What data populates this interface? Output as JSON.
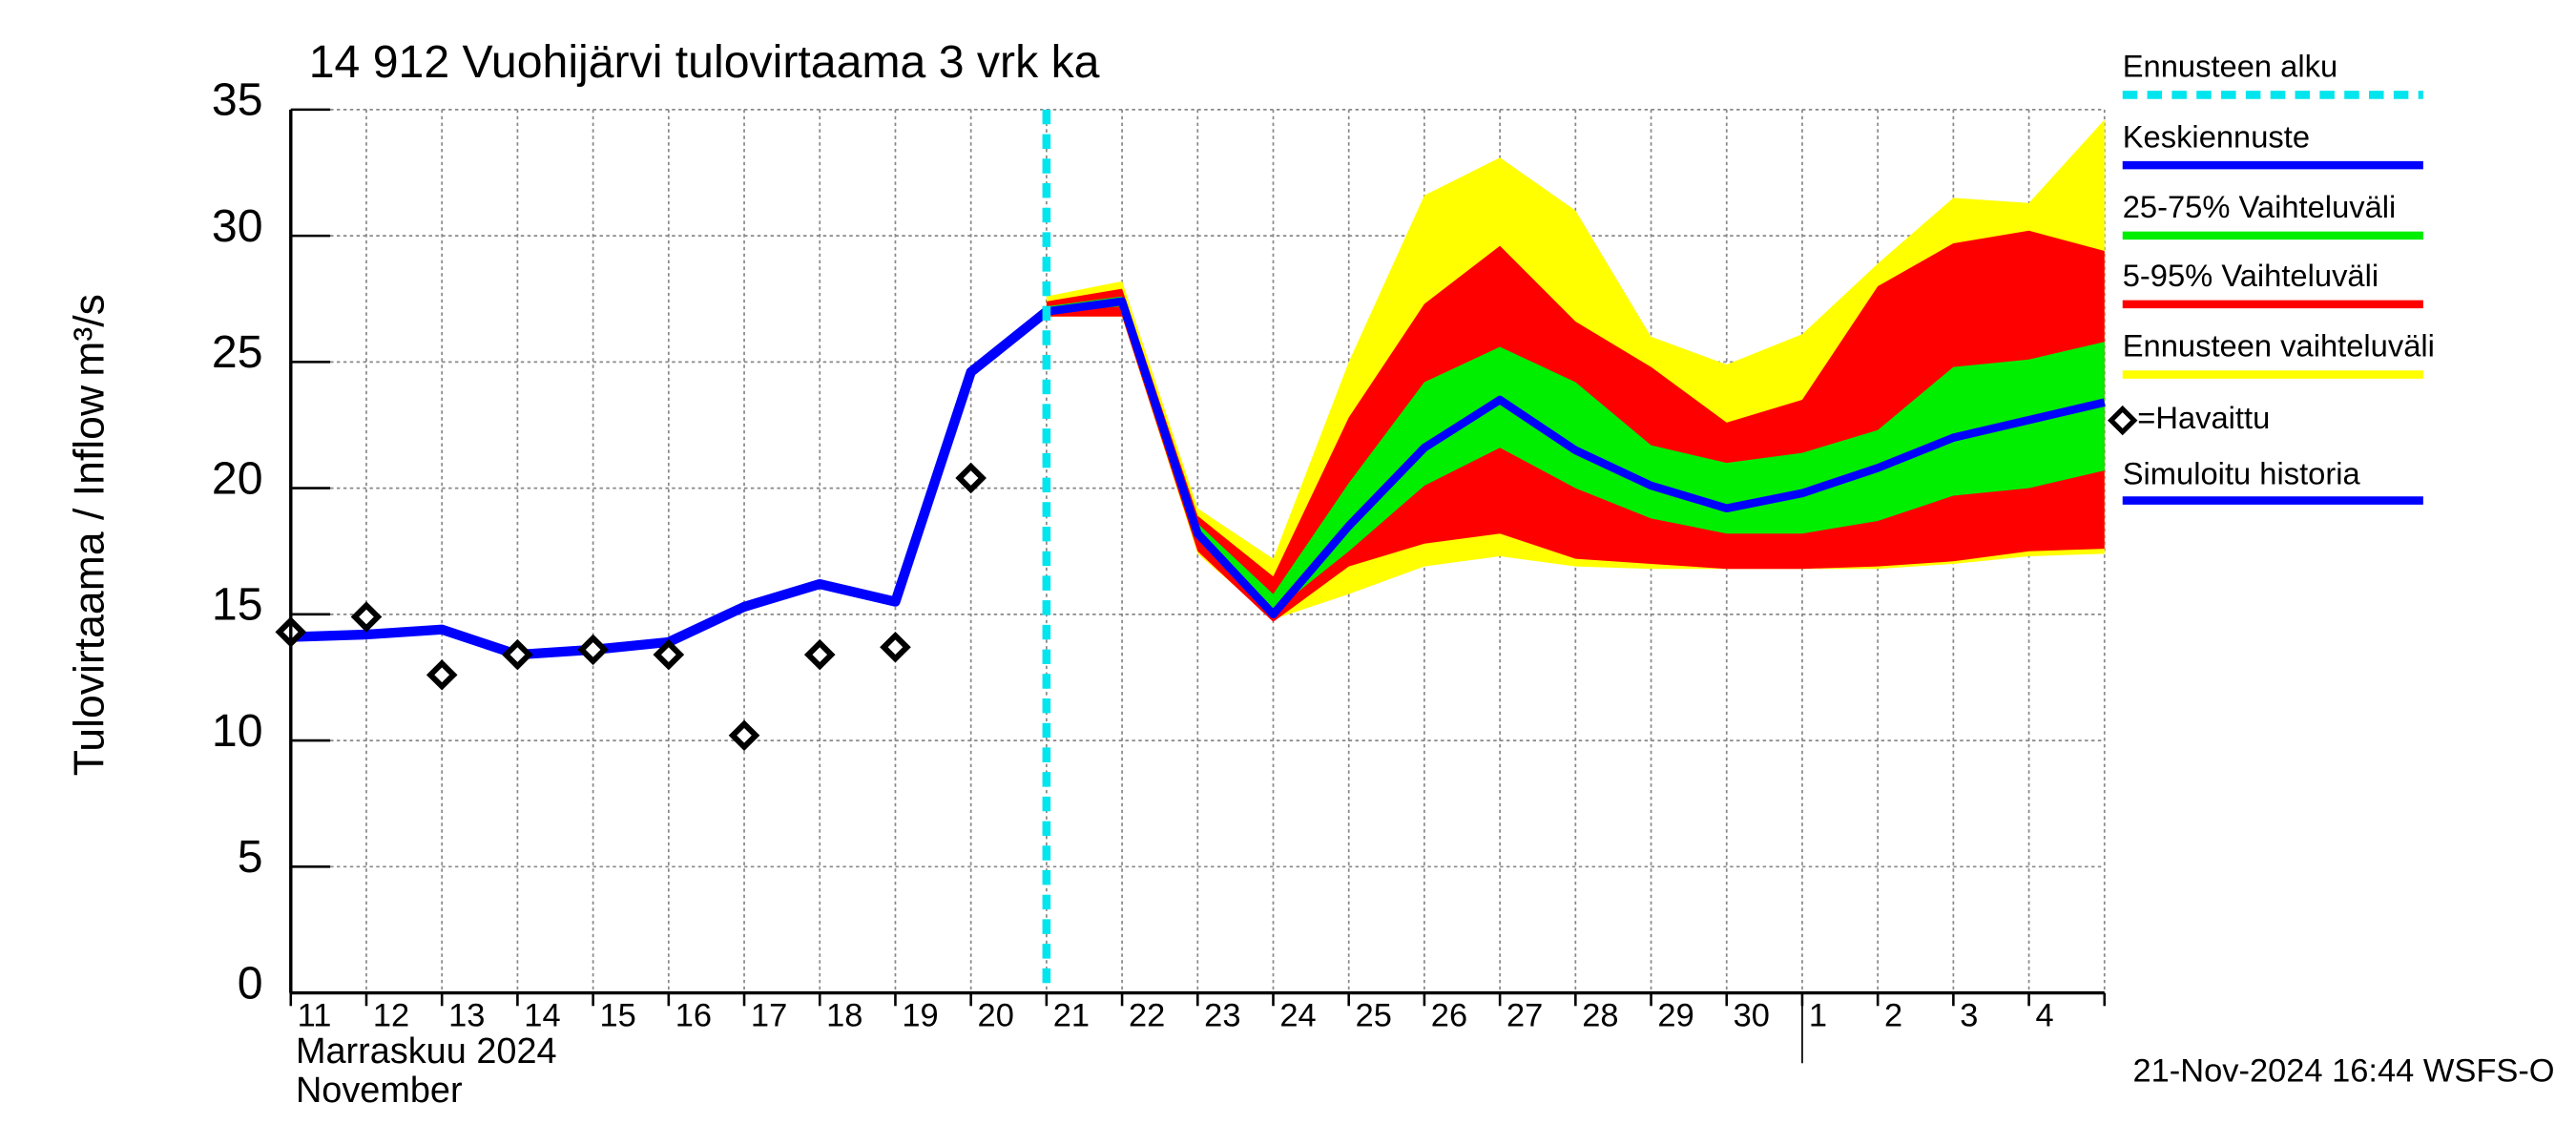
{
  "chart_data": {
    "type": "line",
    "title": "14 912 Vuohijärvi tulovirtaama 3 vrk ka",
    "ylabel": "Tulovirtaama / Inflow",
    "ylabel_unit": "m³/s",
    "xlabel": [
      "Marraskuu 2024",
      "November"
    ],
    "footer": "21-Nov-2024 16:44 WSFS-O",
    "categories": [
      "11",
      "12",
      "13",
      "14",
      "15",
      "16",
      "17",
      "18",
      "19",
      "20",
      "21",
      "22",
      "23",
      "24",
      "25",
      "26",
      "27",
      "28",
      "29",
      "30",
      "1",
      "2",
      "3",
      "4",
      null
    ],
    "ylim": [
      0,
      35
    ],
    "yticks": [
      0,
      5,
      10,
      15,
      20,
      25,
      30,
      35
    ],
    "grid": true,
    "forecast_start": {
      "name": "Ennusteen alku",
      "color": "#00e5ee",
      "category": "21"
    },
    "bands": [
      {
        "name": "Ennusteen vaihteluväli",
        "color": "#ffff00",
        "upper": [
          null,
          null,
          null,
          null,
          null,
          null,
          null,
          null,
          null,
          null,
          27.6,
          28.2,
          19.2,
          17.2,
          25.0,
          31.6,
          33.1,
          31.0,
          26.0,
          24.9,
          26.1,
          28.9,
          31.5,
          31.3,
          34.6
        ],
        "lower": [
          null,
          null,
          null,
          null,
          null,
          null,
          null,
          null,
          null,
          null,
          26.8,
          26.8,
          17.4,
          14.8,
          15.8,
          16.9,
          17.3,
          16.9,
          16.8,
          16.8,
          16.8,
          16.8,
          17.0,
          17.3,
          17.4
        ]
      },
      {
        "name": "5-95% Vaihteluväli",
        "color": "#ff0000",
        "upper": [
          null,
          null,
          null,
          null,
          null,
          null,
          null,
          null,
          null,
          null,
          27.4,
          27.9,
          18.9,
          16.5,
          22.8,
          27.3,
          29.6,
          26.6,
          24.8,
          22.6,
          23.5,
          28.0,
          29.7,
          30.2,
          29.4
        ],
        "lower": [
          null,
          null,
          null,
          null,
          null,
          null,
          null,
          null,
          null,
          null,
          26.8,
          26.8,
          17.5,
          14.7,
          16.9,
          17.8,
          18.2,
          17.2,
          17.0,
          16.8,
          16.8,
          16.9,
          17.1,
          17.5,
          17.6
        ]
      },
      {
        "name": "25-75% Vaihteluväli",
        "color": "#00ee00",
        "upper": [
          null,
          null,
          null,
          null,
          null,
          null,
          null,
          null,
          null,
          null,
          27.2,
          27.6,
          18.6,
          15.8,
          20.2,
          24.2,
          25.6,
          24.2,
          21.7,
          21.0,
          21.4,
          22.3,
          24.8,
          25.1,
          25.8
        ],
        "lower": [
          null,
          null,
          null,
          null,
          null,
          null,
          null,
          null,
          null,
          null,
          27.0,
          27.2,
          18.0,
          15.1,
          17.5,
          20.1,
          21.6,
          20.0,
          18.8,
          18.2,
          18.2,
          18.7,
          19.7,
          20.0,
          20.7
        ]
      }
    ],
    "series": [
      {
        "name": "Simuloitu historia",
        "color": "#0000ff",
        "values": [
          14.1,
          14.2,
          14.4,
          13.4,
          13.6,
          13.9,
          15.3,
          16.2,
          15.5,
          24.6,
          27.0,
          null,
          null,
          null,
          null,
          null,
          null,
          null,
          null,
          null,
          null,
          null,
          null,
          null,
          null
        ]
      },
      {
        "name": "Keskiennuste",
        "color": "#0000ff",
        "values": [
          null,
          null,
          null,
          null,
          null,
          null,
          null,
          null,
          null,
          null,
          27.0,
          27.4,
          18.2,
          15.0,
          18.5,
          21.6,
          23.5,
          21.5,
          20.1,
          19.2,
          19.8,
          20.8,
          22.0,
          22.7,
          23.4
        ]
      }
    ],
    "observed": {
      "name": "=Havaittu",
      "color": "#000000",
      "values": [
        14.3,
        14.9,
        12.6,
        13.4,
        13.6,
        13.4,
        10.2,
        13.4,
        13.7,
        20.4,
        null,
        null,
        null,
        null,
        null,
        null,
        null,
        null,
        null,
        null,
        null,
        null,
        null,
        null,
        null
      ]
    }
  }
}
